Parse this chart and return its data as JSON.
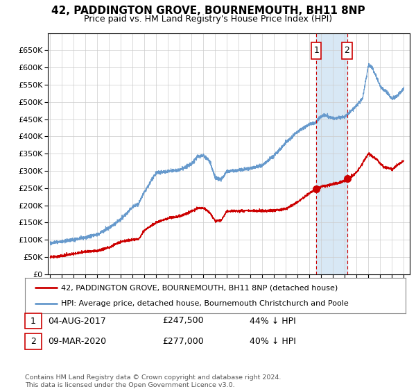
{
  "title": "42, PADDINGTON GROVE, BOURNEMOUTH, BH11 8NP",
  "subtitle": "Price paid vs. HM Land Registry's House Price Index (HPI)",
  "legend_line1": "42, PADDINGTON GROVE, BOURNEMOUTH, BH11 8NP (detached house)",
  "legend_line2": "HPI: Average price, detached house, Bournemouth Christchurch and Poole",
  "sale1_date": "04-AUG-2017",
  "sale1_price": "£247,500",
  "sale1_pct": "44% ↓ HPI",
  "sale2_date": "09-MAR-2020",
  "sale2_price": "£277,000",
  "sale2_pct": "40% ↓ HPI",
  "footnote": "Contains HM Land Registry data © Crown copyright and database right 2024.\nThis data is licensed under the Open Government Licence v3.0.",
  "hpi_color": "#6699cc",
  "price_color": "#cc0000",
  "sale_marker_color": "#cc0000",
  "dashed_line_color": "#cc0000",
  "shade_color": "#d8e8f5",
  "grid_color": "#cccccc",
  "background_color": "#ffffff",
  "ylim": [
    0,
    700000
  ],
  "yticks": [
    0,
    50000,
    100000,
    150000,
    200000,
    250000,
    300000,
    350000,
    400000,
    450000,
    500000,
    550000,
    600000,
    650000
  ],
  "sale1_year": 2017.58,
  "sale2_year": 2020.18,
  "sale1_price_val": 247500,
  "sale2_price_val": 277000
}
